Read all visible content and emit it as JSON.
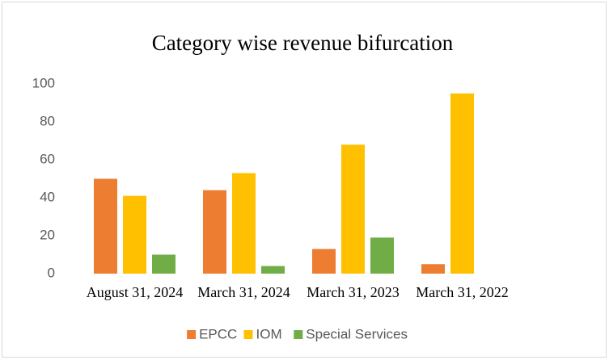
{
  "chart_data": {
    "type": "bar",
    "title": "Category wise revenue bifurcation",
    "categories": [
      "August 31, 2024",
      "March 31, 2024",
      "March 31, 2023",
      "March 31, 2022"
    ],
    "series": [
      {
        "name": "EPCC",
        "color": "#ED7D31",
        "values": [
          50,
          44,
          13,
          5
        ]
      },
      {
        "name": "IOM",
        "color": "#FFC000",
        "values": [
          41,
          53,
          68,
          95
        ]
      },
      {
        "name": "Special Services",
        "color": "#70AD47",
        "values": [
          10,
          4,
          19,
          0
        ]
      }
    ],
    "ylim": [
      0,
      100
    ],
    "yticks": [
      0,
      20,
      40,
      60,
      80,
      100
    ],
    "grid": false,
    "legend": "bottom"
  }
}
